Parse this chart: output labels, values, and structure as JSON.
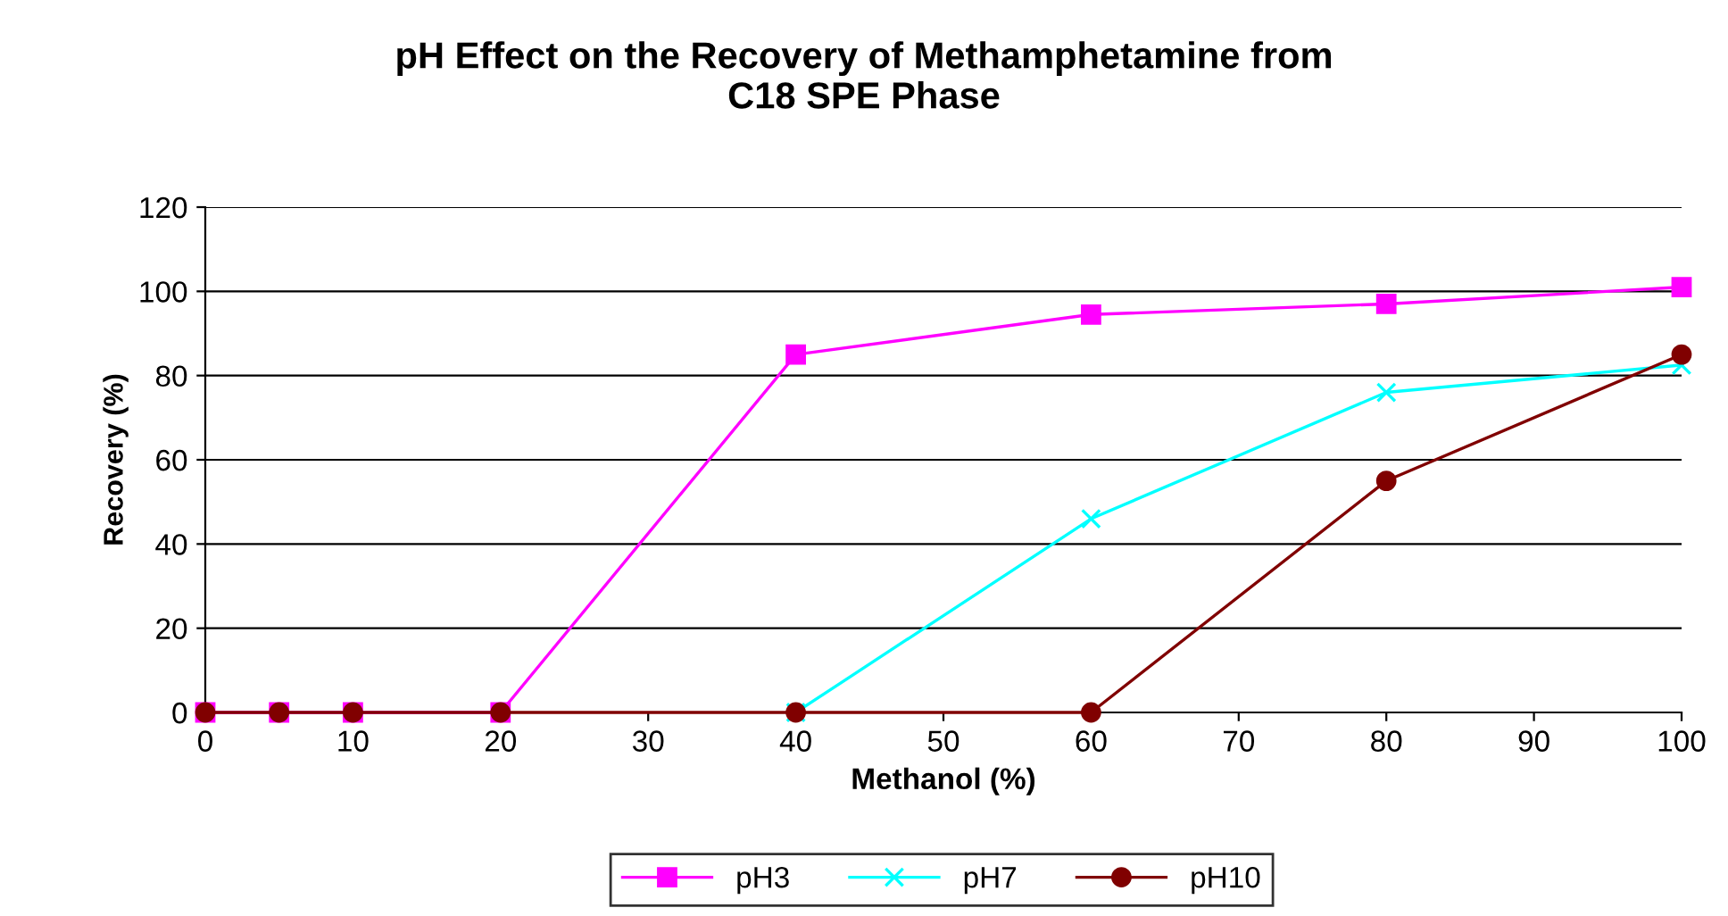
{
  "chart_data": {
    "type": "line",
    "title": "pH Effect on the Recovery of Methamphetamine from\nC18 SPE Phase",
    "xlabel": "Methanol (%)",
    "ylabel": "Recovery (%)",
    "x": [
      0,
      5,
      10,
      20,
      40,
      60,
      80,
      100
    ],
    "series": [
      {
        "name": "pH3",
        "color": "#ff00ff",
        "marker": "square",
        "values": [
          0,
          0,
          0,
          0,
          85,
          94.5,
          97,
          101
        ]
      },
      {
        "name": "pH7",
        "color": "#00ffff",
        "marker": "cross",
        "values": [
          null,
          null,
          null,
          null,
          0,
          46,
          76,
          82.5
        ]
      },
      {
        "name": "pH10",
        "color": "#800000",
        "marker": "circle",
        "values": [
          0,
          0,
          0,
          0,
          0,
          0,
          55,
          85
        ]
      }
    ],
    "xlim": [
      0,
      100
    ],
    "xticks": [
      0,
      10,
      20,
      30,
      40,
      50,
      60,
      70,
      80,
      90,
      100
    ],
    "ylim": [
      0,
      120
    ],
    "yticks": [
      0,
      20,
      40,
      60,
      80,
      100,
      120
    ],
    "grid": "y",
    "legend": "bottom",
    "line_style": "solid"
  }
}
